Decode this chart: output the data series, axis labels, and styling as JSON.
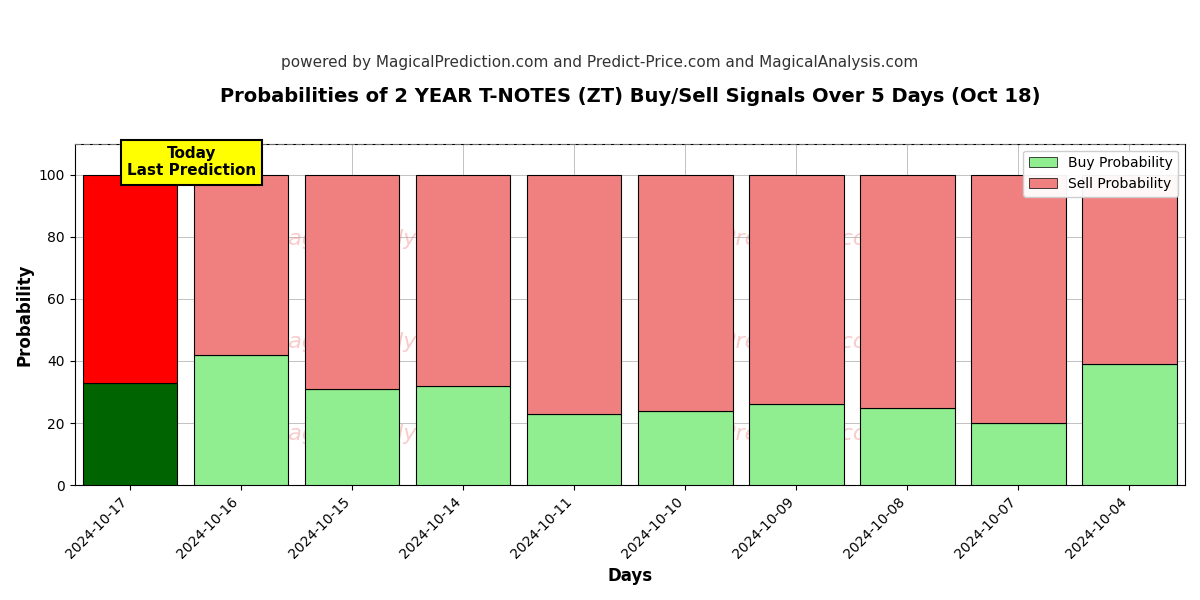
{
  "title": "Probabilities of 2 YEAR T-NOTES (ZT) Buy/Sell Signals Over 5 Days (Oct 18)",
  "subtitle": "powered by MagicalPrediction.com and Predict-Price.com and MagicalAnalysis.com",
  "xlabel": "Days",
  "ylabel": "Probability",
  "ylim": [
    0,
    110
  ],
  "yticks": [
    0,
    20,
    40,
    60,
    80,
    100
  ],
  "dashed_line_y": 110,
  "categories": [
    "2024-10-17",
    "2024-10-16",
    "2024-10-15",
    "2024-10-14",
    "2024-10-11",
    "2024-10-10",
    "2024-10-09",
    "2024-10-08",
    "2024-10-07",
    "2024-10-04"
  ],
  "buy_values": [
    33,
    42,
    31,
    32,
    23,
    24,
    26,
    25,
    20,
    39
  ],
  "sell_values": [
    67,
    58,
    69,
    68,
    77,
    76,
    74,
    75,
    80,
    61
  ],
  "today_bar_buy_color": "#006400",
  "today_bar_sell_color": "#ff0000",
  "other_bar_buy_color": "#90EE90",
  "other_bar_sell_color": "#F08080",
  "bar_edge_color": "#000000",
  "bar_edge_linewidth": 0.8,
  "legend_buy_color": "#90EE90",
  "legend_sell_color": "#F08080",
  "today_annotation_text": "Today\nLast Prediction",
  "today_annotation_bg": "#FFFF00",
  "today_annotation_fontsize": 11,
  "title_fontsize": 14,
  "subtitle_fontsize": 11,
  "axis_label_fontsize": 12,
  "tick_fontsize": 10,
  "legend_fontsize": 10,
  "grid_color": "#aaaaaa",
  "grid_linewidth": 0.5,
  "background_color": "#ffffff",
  "figsize": [
    12,
    6
  ],
  "dpi": 100,
  "bar_width": 0.85,
  "watermark_color": "#F08080",
  "watermark_alpha": 0.4,
  "watermark_fontsize": 16
}
